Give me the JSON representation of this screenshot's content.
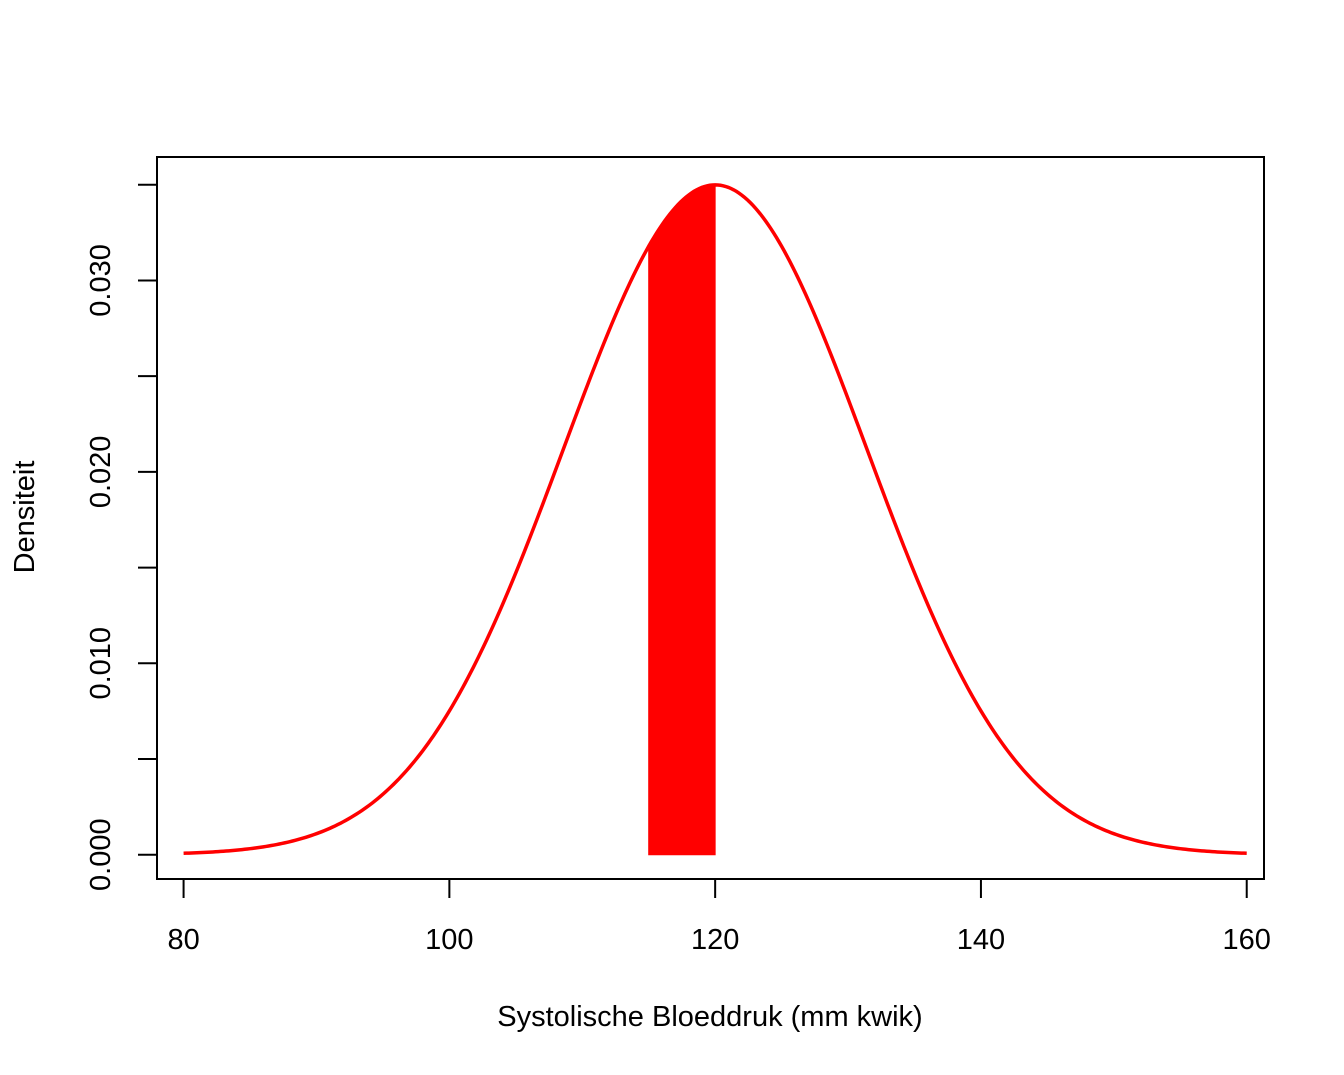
{
  "chart_data": {
    "type": "area",
    "title": "",
    "xlabel": "Systolische Bloeddruk (mm kwik)",
    "ylabel": "Densiteit",
    "xlim": [
      78,
      161.3
    ],
    "ylim": [
      -0.00127,
      0.03645
    ],
    "grid": false,
    "legend": "none",
    "x_ticks": [
      80,
      100,
      120,
      140,
      160
    ],
    "x_tick_labels": [
      "80",
      "100",
      "120",
      "140",
      "160"
    ],
    "y_ticks": [
      0.0,
      0.005,
      0.01,
      0.015,
      0.02,
      0.025,
      0.03,
      0.035
    ],
    "y_tick_labels": [
      "0.000",
      "",
      "0.010",
      "",
      "0.020",
      "",
      "0.030",
      ""
    ],
    "series": [
      {
        "type": "line",
        "distribution": "normal",
        "mean": 120,
        "sd": 11.4,
        "x_range": [
          80,
          160
        ],
        "color": "#ff0000"
      },
      {
        "type": "shaded_area",
        "x_range": [
          115,
          120
        ],
        "color": "#ff0000"
      }
    ]
  }
}
